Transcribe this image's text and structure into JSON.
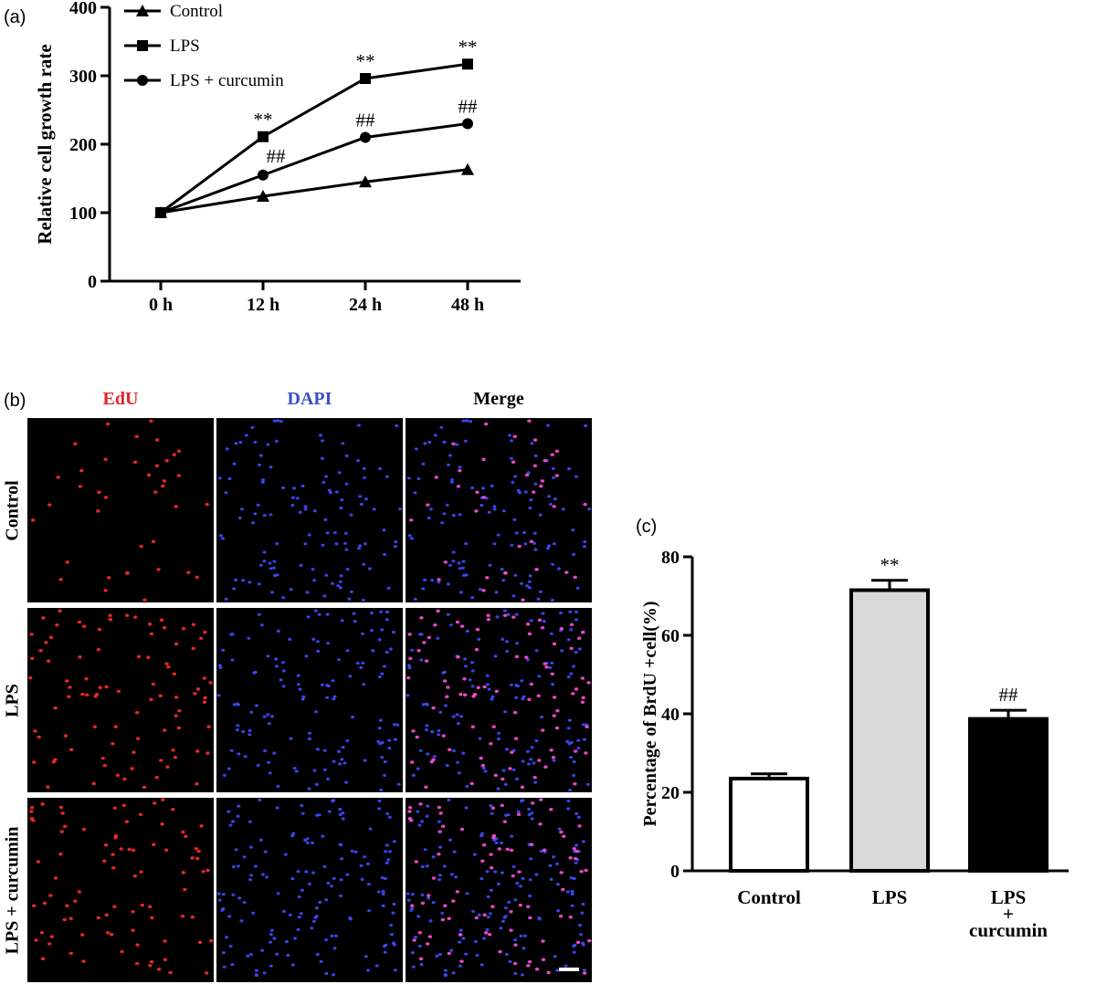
{
  "panel_labels": {
    "a": "(a)",
    "b": "(b)",
    "c": "(c)"
  },
  "chart_data": [
    {
      "type": "line",
      "ylabel": "Relative cell growth rate",
      "xlabel": "",
      "categories": [
        "0 h",
        "12 h",
        "24 h",
        "48 h"
      ],
      "ylim": [
        0,
        400
      ],
      "yticks": [
        "0",
        "100",
        "200",
        "300",
        "400"
      ],
      "legend_position": "top-left",
      "series": [
        {
          "name": "Control",
          "marker": "triangle",
          "values": [
            100,
            124,
            145,
            163
          ]
        },
        {
          "name": "LPS",
          "marker": "square",
          "values": [
            100,
            211,
            296,
            317
          ]
        },
        {
          "name": "LPS + curcumin",
          "marker": "circle",
          "values": [
            100,
            155,
            210,
            230
          ]
        }
      ],
      "annotations": [
        {
          "text": "**",
          "category": "12 h",
          "series": "LPS"
        },
        {
          "text": "**",
          "category": "24 h",
          "series": "LPS"
        },
        {
          "text": "**",
          "category": "48 h",
          "series": "LPS"
        },
        {
          "text": "##",
          "category": "12 h",
          "series": "LPS + curcumin"
        },
        {
          "text": "##",
          "category": "24 h",
          "series": "LPS + curcumin"
        },
        {
          "text": "##",
          "category": "48 h",
          "series": "LPS + curcumin"
        }
      ]
    },
    {
      "type": "bar",
      "ylabel": "Percentage of BrdU +cell(%)",
      "xlabel": "",
      "categories": [
        "Control",
        "LPS",
        "LPS\n+\ncurcumin"
      ],
      "category_lines": [
        [
          "Control"
        ],
        [
          "LPS"
        ],
        [
          "LPS",
          "+",
          "curcumin"
        ]
      ],
      "values": [
        23.5,
        71.5,
        38.7
      ],
      "errors": [
        1.2,
        2.5,
        2.2
      ],
      "fills": [
        "#ffffff",
        "#d9d9d9",
        "#000000"
      ],
      "ylim": [
        0,
        80
      ],
      "yticks": [
        "0",
        "20",
        "40",
        "60",
        "80"
      ],
      "annotations": [
        {
          "text": "",
          "category": 0
        },
        {
          "text": "**",
          "category": 1
        },
        {
          "text": "##",
          "category": 2
        }
      ]
    }
  ],
  "microscopy": {
    "columns": [
      {
        "label": "EdU",
        "color": "#e0252b"
      },
      {
        "label": "DAPI",
        "color": "#3a4fc9"
      },
      {
        "label": "Merge",
        "color": "#000000"
      }
    ],
    "rows": [
      "Control",
      "LPS",
      "LPS + curcumin"
    ],
    "colors": {
      "edu": "#ff2a2a",
      "dapi": "#3d4cff",
      "merge": "#ff4fd8"
    }
  }
}
